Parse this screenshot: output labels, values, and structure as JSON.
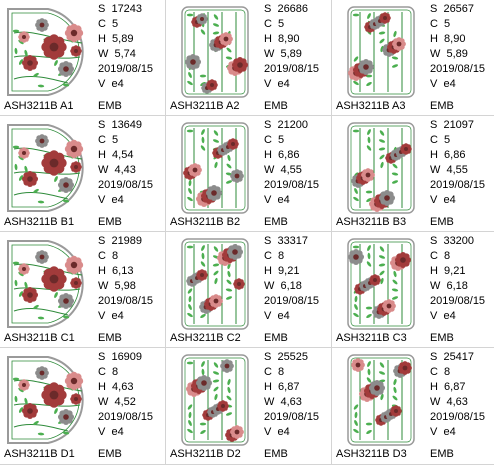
{
  "designs": [
    {
      "name": "ASH3211B A1",
      "format": "EMB",
      "shape": "arch",
      "stitches": "S  17243",
      "colors": "C  5",
      "height": "H  5,89",
      "width": "W  5,74",
      "date": "2019/08/15",
      "version": "V  e4"
    },
    {
      "name": "ASH3211B A2",
      "format": "EMB",
      "shape": "rect",
      "stitches": "S  26686",
      "colors": "C  5",
      "height": "H  8,90",
      "width": "W  5,89",
      "date": "2019/08/15",
      "version": "V  e4"
    },
    {
      "name": "ASH3211B A3",
      "format": "EMB",
      "shape": "rect",
      "stitches": "S  26567",
      "colors": "C  5",
      "height": "H  8,90",
      "width": "W  5,89",
      "date": "2019/08/15",
      "version": "V  e4"
    },
    {
      "name": "ASH3211B B1",
      "format": "EMB",
      "shape": "arch",
      "stitches": "S  13649",
      "colors": "C  5",
      "height": "H  4,54",
      "width": "W  4,43",
      "date": "2019/08/15",
      "version": "V  e4"
    },
    {
      "name": "ASH3211B B2",
      "format": "EMB",
      "shape": "rect",
      "stitches": "S  21200",
      "colors": "C  5",
      "height": "H  6,86",
      "width": "W  4,55",
      "date": "2019/08/15",
      "version": "V  e4"
    },
    {
      "name": "ASH3211B B3",
      "format": "EMB",
      "shape": "rect",
      "stitches": "S  21097",
      "colors": "C  5",
      "height": "H  6,86",
      "width": "W  4,55",
      "date": "2019/08/15",
      "version": "V  e4"
    },
    {
      "name": "ASH3211B C1",
      "format": "EMB",
      "shape": "arch",
      "stitches": "S  21989",
      "colors": "C  8",
      "height": "H  6,13",
      "width": "W  5,98",
      "date": "2019/08/15",
      "version": "V  e4"
    },
    {
      "name": "ASH3211B C2",
      "format": "EMB",
      "shape": "rect",
      "stitches": "S  33317",
      "colors": "C  8",
      "height": "H  9,21",
      "width": "W  6,18",
      "date": "2019/08/15",
      "version": "V  e4"
    },
    {
      "name": "ASH3211B C3",
      "format": "EMB",
      "shape": "rect",
      "stitches": "S  33200",
      "colors": "C  8",
      "height": "H  9,21",
      "width": "W  6,18",
      "date": "2019/08/15",
      "version": "V  e4"
    },
    {
      "name": "ASH3211B D1",
      "format": "EMB",
      "shape": "arch",
      "stitches": "S  16909",
      "colors": "C  8",
      "height": "H  4,63",
      "width": "W  4,52",
      "date": "2019/08/15",
      "version": "V  e4"
    },
    {
      "name": "ASH3211B D2",
      "format": "EMB",
      "shape": "rect",
      "stitches": "S  25525",
      "colors": "C  8",
      "height": "H  6,87",
      "width": "W  4,63",
      "date": "2019/08/15",
      "version": "V  e4"
    },
    {
      "name": "ASH3211B D3",
      "format": "EMB",
      "shape": "rect",
      "stitches": "S  25417",
      "colors": "C  8",
      "height": "H  6,87",
      "width": "W  4,63",
      "date": "2019/08/15",
      "version": "V  e4"
    }
  ],
  "colors": {
    "stem": "#2e8b3a",
    "leaf": "#4caf50",
    "flower_red": "#a23b3b",
    "flower_pink": "#d98b8b",
    "flower_gray": "#8c8c8c",
    "frame": "#9a9a9a",
    "grid_line": "#d4d4d4"
  }
}
